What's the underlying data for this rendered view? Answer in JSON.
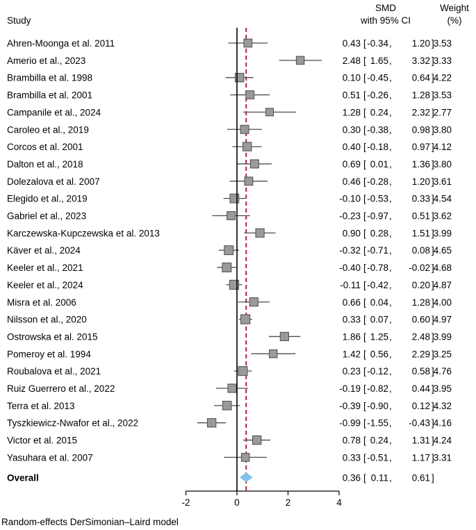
{
  "chart_data": {
    "type": "forest",
    "headers": {
      "study": "Study",
      "smd_line1": "SMD",
      "smd_line2": "with 95% CI",
      "weight_line1": "Weight",
      "weight_line2": "(%)"
    },
    "studies": [
      {
        "study": "Ahren-Moonga et al. 2011",
        "smd": 0.43,
        "lo": -0.34,
        "hi": 1.2,
        "weight": 3.53,
        "smd_text": "0.43",
        "lo_text": "-0.34",
        "hi_text": "1.20",
        "weight_text": "3.53"
      },
      {
        "study": "Amerio et al., 2023",
        "smd": 2.48,
        "lo": 1.65,
        "hi": 3.32,
        "weight": 3.33,
        "smd_text": "2.48",
        "lo_text": "1.65",
        "hi_text": "3.32",
        "weight_text": "3.33"
      },
      {
        "study": "Brambilla et al. 1998",
        "smd": 0.1,
        "lo": -0.45,
        "hi": 0.64,
        "weight": 4.22,
        "smd_text": "0.10",
        "lo_text": "-0.45",
        "hi_text": "0.64",
        "weight_text": "4.22"
      },
      {
        "study": "Brambilla et al. 2001",
        "smd": 0.51,
        "lo": -0.26,
        "hi": 1.28,
        "weight": 3.53,
        "smd_text": "0.51",
        "lo_text": "-0.26",
        "hi_text": "1.28",
        "weight_text": "3.53"
      },
      {
        "study": "Campanile et al., 2024",
        "smd": 1.28,
        "lo": 0.24,
        "hi": 2.32,
        "weight": 2.77,
        "smd_text": "1.28",
        "lo_text": "0.24",
        "hi_text": "2.32",
        "weight_text": "2.77"
      },
      {
        "study": "Caroleo et al., 2019",
        "smd": 0.3,
        "lo": -0.38,
        "hi": 0.98,
        "weight": 3.8,
        "smd_text": "0.30",
        "lo_text": "-0.38",
        "hi_text": "0.98",
        "weight_text": "3.80"
      },
      {
        "study": "Corcos et al. 2001",
        "smd": 0.4,
        "lo": -0.18,
        "hi": 0.97,
        "weight": 4.12,
        "smd_text": "0.40",
        "lo_text": "-0.18",
        "hi_text": "0.97",
        "weight_text": "4.12"
      },
      {
        "study": "Dalton et al., 2018",
        "smd": 0.69,
        "lo": 0.01,
        "hi": 1.36,
        "weight": 3.8,
        "smd_text": "0.69",
        "lo_text": "0.01",
        "hi_text": "1.36",
        "weight_text": "3.80"
      },
      {
        "study": "Dolezalova et al. 2007",
        "smd": 0.46,
        "lo": -0.28,
        "hi": 1.2,
        "weight": 3.61,
        "smd_text": "0.46",
        "lo_text": "-0.28",
        "hi_text": "1.20",
        "weight_text": "3.61"
      },
      {
        "study": "Elegido et al., 2019",
        "smd": -0.1,
        "lo": -0.53,
        "hi": 0.33,
        "weight": 4.54,
        "smd_text": "-0.10",
        "lo_text": "-0.53",
        "hi_text": "0.33",
        "weight_text": "4.54"
      },
      {
        "study": "Gabriel et al., 2023",
        "smd": -0.23,
        "lo": -0.97,
        "hi": 0.51,
        "weight": 3.62,
        "smd_text": "-0.23",
        "lo_text": "-0.97",
        "hi_text": "0.51",
        "weight_text": "3.62"
      },
      {
        "study": "Karczewska-Kupczewska et al. 2013",
        "smd": 0.9,
        "lo": 0.28,
        "hi": 1.51,
        "weight": 3.99,
        "smd_text": "0.90",
        "lo_text": "0.28",
        "hi_text": "1.51",
        "weight_text": "3.99"
      },
      {
        "study": "Käver et al., 2024",
        "smd": -0.32,
        "lo": -0.71,
        "hi": 0.08,
        "weight": 4.65,
        "smd_text": "-0.32",
        "lo_text": "-0.71",
        "hi_text": "0.08",
        "weight_text": "4.65"
      },
      {
        "study": "Keeler et al., 2021",
        "smd": -0.4,
        "lo": -0.78,
        "hi": -0.02,
        "weight": 4.68,
        "smd_text": "-0.40",
        "lo_text": "-0.78",
        "hi_text": "-0.02",
        "weight_text": "4.68"
      },
      {
        "study": "Keeler et al., 2024",
        "smd": -0.11,
        "lo": -0.42,
        "hi": 0.2,
        "weight": 4.87,
        "smd_text": "-0.11",
        "lo_text": "-0.42",
        "hi_text": "0.20",
        "weight_text": "4.87"
      },
      {
        "study": "Misra et al. 2006",
        "smd": 0.66,
        "lo": 0.04,
        "hi": 1.28,
        "weight": 4.0,
        "smd_text": "0.66",
        "lo_text": "0.04",
        "hi_text": "1.28",
        "weight_text": "4.00"
      },
      {
        "study": "Nilsson et al., 2020",
        "smd": 0.33,
        "lo": 0.07,
        "hi": 0.6,
        "weight": 4.97,
        "smd_text": "0.33",
        "lo_text": "0.07",
        "hi_text": "0.60",
        "weight_text": "4.97"
      },
      {
        "study": "Ostrowska et al. 2015",
        "smd": 1.86,
        "lo": 1.25,
        "hi": 2.48,
        "weight": 3.99,
        "smd_text": "1.86",
        "lo_text": "1.25",
        "hi_text": "2.48",
        "weight_text": "3.99"
      },
      {
        "study": "Pomeroy et al. 1994",
        "smd": 1.42,
        "lo": 0.56,
        "hi": 2.29,
        "weight": 3.25,
        "smd_text": "1.42",
        "lo_text": "0.56",
        "hi_text": "2.29",
        "weight_text": "3.25"
      },
      {
        "study": "Roubalova et al., 2021",
        "smd": 0.23,
        "lo": -0.12,
        "hi": 0.58,
        "weight": 4.76,
        "smd_text": "0.23",
        "lo_text": "-0.12",
        "hi_text": "0.58",
        "weight_text": "4.76"
      },
      {
        "study": "Ruiz Guerrero et al., 2022",
        "smd": -0.19,
        "lo": -0.82,
        "hi": 0.44,
        "weight": 3.95,
        "smd_text": "-0.19",
        "lo_text": "-0.82",
        "hi_text": "0.44",
        "weight_text": "3.95"
      },
      {
        "study": "Terra et al. 2013",
        "smd": -0.39,
        "lo": -0.9,
        "hi": 0.12,
        "weight": 4.32,
        "smd_text": "-0.39",
        "lo_text": "-0.90",
        "hi_text": "0.12",
        "weight_text": "4.32"
      },
      {
        "study": "Tyszkiewicz-Nwafor et al., 2022",
        "smd": -0.99,
        "lo": -1.55,
        "hi": -0.43,
        "weight": 4.16,
        "smd_text": "-0.99",
        "lo_text": "-1.55",
        "hi_text": "-0.43",
        "weight_text": "4.16"
      },
      {
        "study": "Victor et al. 2015",
        "smd": 0.78,
        "lo": 0.24,
        "hi": 1.31,
        "weight": 4.24,
        "smd_text": "0.78",
        "lo_text": "0.24",
        "hi_text": "1.31",
        "weight_text": "4.24"
      },
      {
        "study": "Yasuhara et al. 2007",
        "smd": 0.33,
        "lo": -0.51,
        "hi": 1.17,
        "weight": 3.31,
        "smd_text": "0.33",
        "lo_text": "-0.51",
        "hi_text": "1.17",
        "weight_text": "3.31"
      }
    ],
    "overall": {
      "label": "Overall",
      "smd": 0.36,
      "lo": 0.11,
      "hi": 0.61,
      "smd_text": "0.36",
      "lo_text": "0.11",
      "hi_text": "0.61"
    },
    "x_axis": {
      "ticks": [
        -2,
        0,
        2,
        4
      ],
      "tick_labels": [
        "-2",
        "0",
        "2",
        "4"
      ],
      "range": [
        -2,
        4
      ]
    },
    "null_line": 0,
    "footnote": "Random-effects DerSimonian–Laird model",
    "colors": {
      "marker_fill": "#9a9a9a",
      "marker_stroke": "#4d4d4d",
      "ci_line": "#4d4d4d",
      "overall_line": "#b22234",
      "diamond": "#7ec4ec",
      "axis": "#000000"
    }
  }
}
